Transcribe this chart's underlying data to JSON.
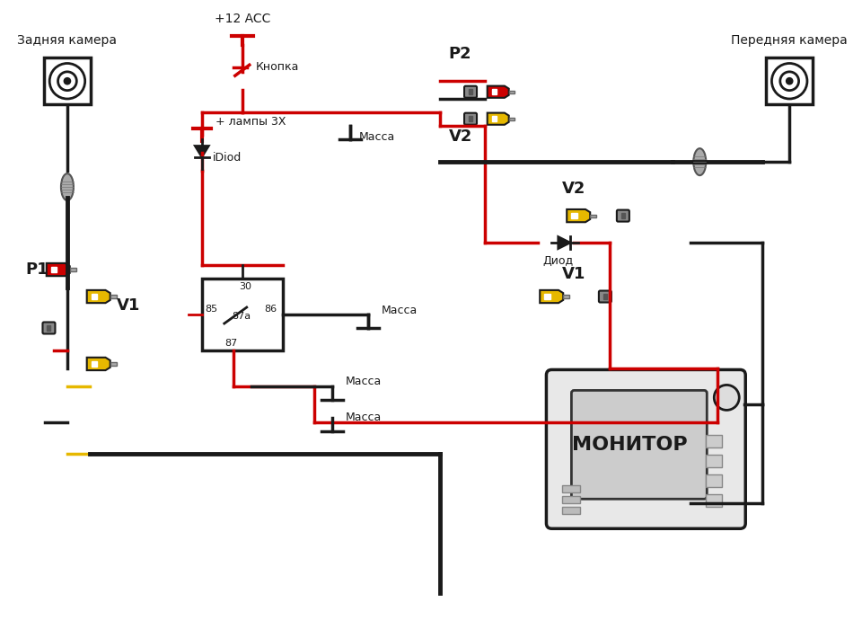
{
  "title": "",
  "bg_color": "#ffffff",
  "line_color_black": "#1a1a1a",
  "line_color_red": "#cc0000",
  "connector_yellow": "#e6b800",
  "connector_red": "#cc0000",
  "connector_black": "#333333",
  "connector_gray": "#888888",
  "text_labels": {
    "rear_camera": "Задняя камера",
    "front_camera": "Передняя камера",
    "p1": "P1",
    "p2": "P2",
    "v1_left": "V1",
    "v1_right": "V1",
    "v2_top": "V2",
    "v2_right": "V2",
    "plus12acc": "+12 ACC",
    "knopka": "Кнопка",
    "plus_lampy": "+ лампы 3Х",
    "idiod": "iDiod",
    "diod": "Диод",
    "massa1": "Масса",
    "massa2": "Масса",
    "massa3": "Масса",
    "monitor": "МОНИТОР",
    "relay_30": "30",
    "relay_85": "85",
    "relay_86": "86",
    "relay_87a": "87a",
    "relay_87": "87"
  }
}
